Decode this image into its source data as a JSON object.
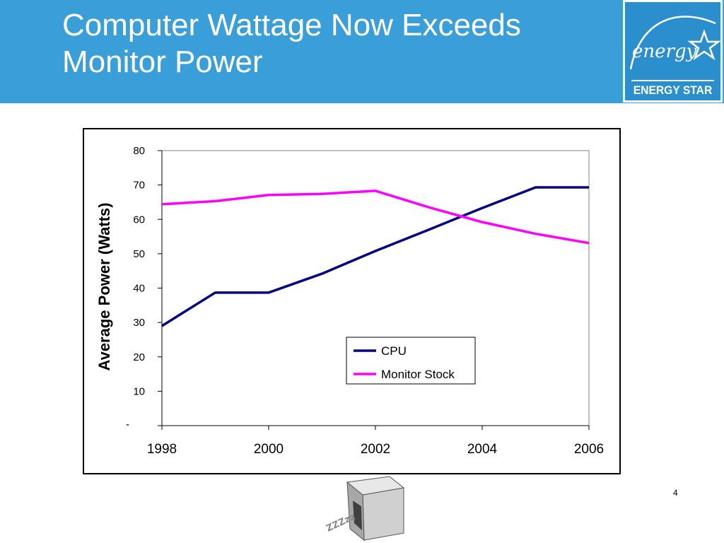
{
  "slide": {
    "title_line1": "Computer Wattage Now Exceeds",
    "title_line2": "Monitor Power",
    "page_number": "4"
  },
  "logo": {
    "script_text": "energy",
    "band_text": "ENERGY STAR"
  },
  "chart_data": {
    "type": "line",
    "title": "",
    "xlabel": "",
    "ylabel": "Average Power (Watts)",
    "x": [
      1998,
      1999,
      2000,
      2001,
      2002,
      2003,
      2004,
      2005,
      2006
    ],
    "xlim": [
      1998,
      2006
    ],
    "ylim": [
      0,
      80
    ],
    "x_ticks": [
      1998,
      2000,
      2002,
      2004,
      2006
    ],
    "x_tick_labels": [
      "1998",
      "2000",
      "2002",
      "2004",
      "2006"
    ],
    "y_ticks": [
      0,
      10,
      20,
      30,
      40,
      50,
      60,
      70,
      80
    ],
    "y_tick_labels": [
      "-",
      "10",
      "20",
      "30",
      "40",
      "50",
      "60",
      "70",
      "80"
    ],
    "grid": false,
    "legend_position": "lower-right",
    "series": [
      {
        "name": "CPU",
        "color": "#000080",
        "values": [
          29,
          38.7,
          38.7,
          44.2,
          50.8,
          57,
          63.3,
          69.3,
          69.3
        ]
      },
      {
        "name": "Monitor Stock",
        "color": "#ff00ff",
        "values": [
          64.4,
          65.3,
          67.1,
          67.4,
          68.3,
          63.5,
          59.2,
          55.8,
          53.1
        ]
      }
    ]
  }
}
